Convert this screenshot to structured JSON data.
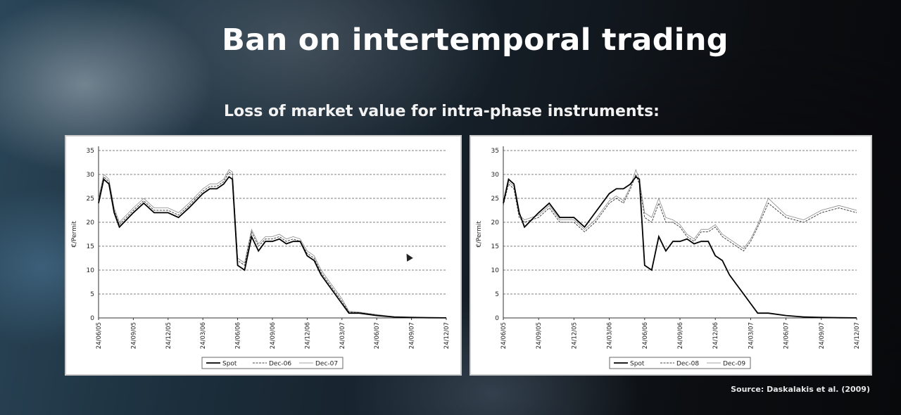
{
  "slide": {
    "title": "Ban on intertemporal trading",
    "subtitle": "Loss of market value for intra-phase instruments:",
    "source": "Source: Daskalakis et al. (2009)"
  },
  "colors": {
    "spot": "#000000",
    "future1": "#444444",
    "future2": "#888888",
    "grid": "#555555"
  },
  "chart_data": [
    {
      "type": "line",
      "title": "",
      "ylabel": "€/Permit",
      "xlabel": "",
      "ylim": [
        0,
        35
      ],
      "yticks": [
        0,
        5,
        10,
        15,
        20,
        25,
        30,
        35
      ],
      "xticks": [
        "24/06/05",
        "24/09/05",
        "24/12/05",
        "24/03/06",
        "24/06/06",
        "24/09/06",
        "24/12/06",
        "24/03/07",
        "24/06/07",
        "24/09/07",
        "24/12/07"
      ],
      "grid": "horizontal-dashed",
      "legend": "bottom",
      "series": [
        {
          "name": "Spot",
          "style": "solid-thick",
          "x": [
            0,
            0.15,
            0.3,
            0.45,
            0.6,
            1,
            1.3,
            1.6,
            2,
            2.3,
            2.6,
            3,
            3.2,
            3.4,
            3.6,
            3.75,
            3.85,
            4,
            4.2,
            4.4,
            4.6,
            4.8,
            5,
            5.2,
            5.4,
            5.6,
            5.8,
            6,
            6.2,
            6.4,
            6.6,
            6.8,
            7,
            7.2,
            7.5,
            8,
            8.5,
            9,
            9.5,
            10
          ],
          "y": [
            24,
            29,
            28,
            22,
            19,
            22,
            24,
            22,
            22,
            21,
            23,
            26,
            27,
            27,
            28,
            29.5,
            29,
            11,
            10,
            17,
            14,
            16,
            16,
            16.5,
            15.5,
            16,
            16,
            13,
            12,
            9,
            7,
            5,
            3,
            1,
            1,
            0.5,
            0.2,
            0.1,
            0.05,
            0.02
          ]
        },
        {
          "name": "Dec-06",
          "style": "dashed",
          "x": [
            0,
            0.15,
            0.3,
            0.45,
            0.6,
            1,
            1.3,
            1.6,
            2,
            2.3,
            2.6,
            3,
            3.2,
            3.4,
            3.6,
            3.75,
            3.85,
            4,
            4.2,
            4.4,
            4.6,
            4.8,
            5,
            5.2,
            5.4,
            5.6,
            5.8,
            6,
            6.2,
            6.4,
            6.6,
            6.8,
            7,
            7.2,
            7.5,
            8,
            8.5,
            9,
            9.5,
            10
          ],
          "y": [
            24.5,
            29.5,
            28.5,
            22.5,
            19.5,
            22.5,
            24.5,
            22.5,
            22.5,
            21.5,
            23.5,
            26.5,
            27.5,
            27.5,
            28.5,
            30.5,
            30,
            12,
            11,
            18,
            15,
            16.5,
            16.5,
            17,
            16,
            16.5,
            16,
            13.5,
            12.5,
            9.5,
            7.5,
            5.5,
            3.5,
            1.2,
            1.1,
            0.6,
            0.2,
            0.1,
            0.05,
            0.02
          ]
        },
        {
          "name": "Dec-07",
          "style": "thin",
          "x": [
            0,
            0.15,
            0.3,
            0.45,
            0.6,
            1,
            1.3,
            1.6,
            2,
            2.3,
            2.6,
            3,
            3.2,
            3.4,
            3.6,
            3.75,
            3.85,
            4,
            4.2,
            4.4,
            4.6,
            4.8,
            5,
            5.2,
            5.4,
            5.6,
            5.8,
            6,
            6.2,
            6.4,
            6.6,
            6.8,
            7,
            7.2,
            7.5,
            8,
            8.5,
            9,
            9.5,
            10
          ],
          "y": [
            25,
            30,
            29,
            23,
            20,
            23,
            25,
            23,
            23,
            22,
            24,
            27,
            28,
            28,
            29,
            31,
            30.5,
            12.5,
            11.5,
            18.5,
            15.5,
            17,
            17,
            17.5,
            16.5,
            17,
            16.5,
            14,
            13,
            10,
            8,
            6,
            4,
            1.4,
            1.2,
            0.7,
            0.25,
            0.12,
            0.06,
            0.02
          ]
        }
      ]
    },
    {
      "type": "line",
      "title": "",
      "ylabel": "€/Permit",
      "xlabel": "",
      "ylim": [
        0,
        35
      ],
      "yticks": [
        0,
        5,
        10,
        15,
        20,
        25,
        30,
        35
      ],
      "xticks": [
        "24/06/05",
        "24/09/05",
        "24/12/05",
        "24/03/06",
        "24/06/06",
        "24/09/06",
        "24/12/06",
        "24/03/07",
        "24/06/07",
        "24/09/07",
        "24/12/07"
      ],
      "grid": "horizontal-dashed",
      "legend": "bottom",
      "series": [
        {
          "name": "Spot",
          "style": "solid-thick",
          "x": [
            0,
            0.15,
            0.3,
            0.45,
            0.6,
            1,
            1.3,
            1.6,
            2,
            2.3,
            2.6,
            3,
            3.2,
            3.4,
            3.6,
            3.75,
            3.85,
            4,
            4.2,
            4.4,
            4.6,
            4.8,
            5,
            5.2,
            5.4,
            5.6,
            5.8,
            6,
            6.2,
            6.4,
            6.6,
            6.8,
            7,
            7.2,
            7.5,
            8,
            8.5,
            9,
            9.5,
            10
          ],
          "y": [
            24,
            29,
            28,
            22,
            19,
            22,
            24,
            21,
            21,
            19,
            22,
            26,
            27,
            27,
            28,
            29.5,
            29,
            11,
            10,
            17,
            14,
            16,
            16,
            16.5,
            15.5,
            16,
            16,
            13,
            12,
            9,
            7,
            5,
            3,
            1,
            1,
            0.5,
            0.2,
            0.1,
            0.05,
            0.02
          ]
        },
        {
          "name": "Dec-08",
          "style": "dashed",
          "x": [
            0,
            0.15,
            0.3,
            0.45,
            0.6,
            1,
            1.3,
            1.6,
            2,
            2.3,
            2.6,
            3,
            3.2,
            3.4,
            3.6,
            3.75,
            3.85,
            4,
            4.2,
            4.4,
            4.6,
            4.8,
            5,
            5.2,
            5.4,
            5.6,
            5.8,
            6,
            6.2,
            6.4,
            6.6,
            6.8,
            7,
            7.2,
            7.5,
            8,
            8.5,
            9,
            9.5,
            10
          ],
          "y": [
            23.5,
            28,
            27,
            21,
            20,
            21,
            23,
            20,
            20,
            18,
            20,
            24,
            25,
            24,
            27,
            30,
            28,
            21,
            20,
            24,
            20,
            20,
            19,
            17,
            16,
            18,
            18,
            19,
            17,
            16,
            15,
            14,
            16,
            19,
            24,
            21,
            20,
            22,
            23,
            22
          ]
        },
        {
          "name": "Dec-09",
          "style": "thin",
          "x": [
            0,
            0.15,
            0.3,
            0.45,
            0.6,
            1,
            1.3,
            1.6,
            2,
            2.3,
            2.6,
            3,
            3.2,
            3.4,
            3.6,
            3.75,
            3.85,
            4,
            4.2,
            4.4,
            4.6,
            4.8,
            5,
            5.2,
            5.4,
            5.6,
            5.8,
            6,
            6.2,
            6.4,
            6.6,
            6.8,
            7,
            7.2,
            7.5,
            8,
            8.5,
            9,
            9.5,
            10
          ],
          "y": [
            24,
            28.5,
            27.5,
            21.5,
            20.5,
            21.5,
            23.5,
            20.5,
            20.5,
            18.5,
            20.5,
            24.5,
            25.5,
            24.5,
            27.5,
            31,
            29,
            22,
            21,
            25,
            21,
            20.5,
            19.5,
            17.5,
            16.5,
            18.5,
            18.5,
            19.5,
            17.5,
            16.5,
            15.5,
            14.5,
            16.5,
            19.5,
            25,
            21.5,
            20.5,
            22.5,
            23.5,
            22.5
          ]
        }
      ]
    }
  ]
}
